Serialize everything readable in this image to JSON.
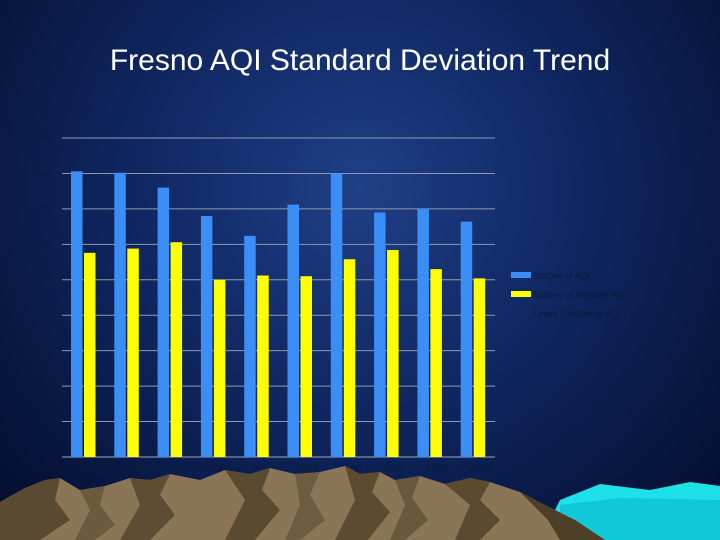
{
  "title": "Fresno AQI Standard Deviation Trend",
  "chart_data": {
    "type": "bar",
    "title": "Fresno AQI Standard Deviation Trend",
    "categories": [
      "2000",
      "2001",
      "2002",
      "2003",
      "2004",
      "2005",
      "2006",
      "2007",
      "2008",
      "2009"
    ],
    "series": [
      {
        "name": "StdDev of AQI",
        "color": "#3a8ef5",
        "values": [
          40.3,
          40.1,
          38.0,
          34.0,
          31.2,
          35.6,
          40.0,
          34.5,
          35.0,
          33.2
        ]
      },
      {
        "name": "StdDev of adjusted AQI",
        "color": "#ffff00",
        "values": [
          28.8,
          29.4,
          30.3,
          25.0,
          25.6,
          25.5,
          27.9,
          29.2,
          26.5,
          25.2
        ]
      }
    ],
    "trendline_label": "Linear (StdDev of AQI )",
    "ylim": [
      0,
      45
    ],
    "yticks": [
      0,
      5,
      10,
      15,
      20,
      25,
      30,
      35,
      40,
      45
    ],
    "grid": true,
    "legend": "right"
  }
}
